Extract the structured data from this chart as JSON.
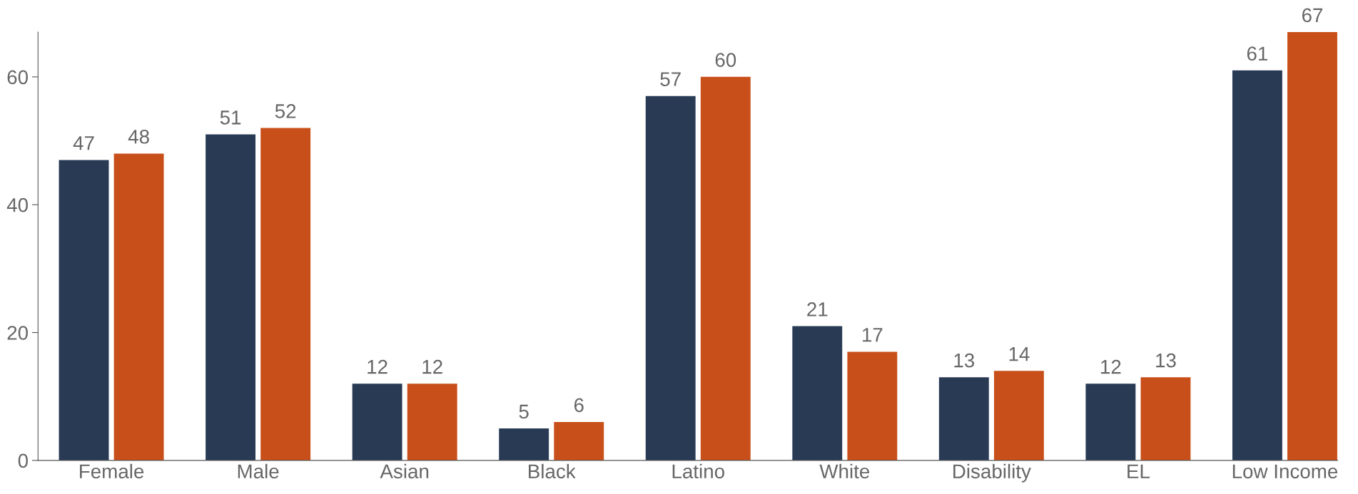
{
  "chart_data": {
    "type": "bar",
    "categories": [
      "Female",
      "Male",
      "Asian",
      "Black",
      "Latino",
      "White",
      "Disability",
      "EL",
      "Low Income"
    ],
    "series": [
      {
        "color": "#283a54",
        "values": [
          47,
          51,
          12,
          5,
          57,
          21,
          13,
          12,
          61
        ]
      },
      {
        "color": "#c94f1a",
        "values": [
          48,
          52,
          12,
          6,
          60,
          17,
          14,
          13,
          67
        ]
      }
    ],
    "ylim": [
      0,
      67
    ],
    "yticks": [
      0,
      20,
      40,
      60
    ],
    "data_labels": true,
    "grid": false,
    "legend": false
  }
}
